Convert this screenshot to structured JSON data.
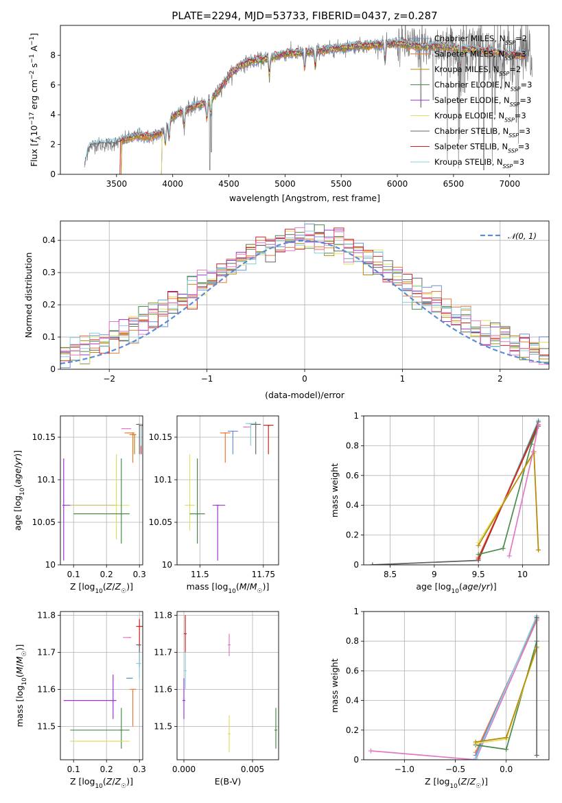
{
  "figure_title": "PLATE=2294, MJD=53733, FIBERID=0437, z=0.287",
  "colors": {
    "Chabrier MILES": "#6a8ed6",
    "Salpeter MILES": "#ee7733",
    "Kroupa MILES": "#b8860b",
    "Chabrier ELODIE": "#4a8a4a",
    "Salpeter ELODIE": "#9933cc",
    "Kroupa ELODIE": "#dde060",
    "Chabrier STELIB": "#666666",
    "Salpeter STELIB": "#cc2222",
    "Kroupa STELIB": "#88ccdd",
    "pink": "#e377c2",
    "normal": "#5b8bd6"
  },
  "chart_data": [
    {
      "id": "spectrum",
      "type": "line",
      "title": "PLATE=2294, MJD=53733, FIBERID=0437, z=0.287",
      "xlabel": "wavelength [Angstrom, rest frame]",
      "ylabel": "Flux [f_λ 10^-17 erg cm^-2 s^-1 A^-1]",
      "xlim": [
        3000,
        7350
      ],
      "ylim": [
        0,
        10
      ],
      "xticks": [
        3500,
        4000,
        4500,
        5000,
        5500,
        6000,
        6500,
        7000
      ],
      "yticks": [
        0,
        2,
        4,
        6,
        8
      ],
      "legend_position": "top-right",
      "legend": [
        "Chabrier MILES, N_SSP=2",
        "Salpeter MILES, N_SSP=3",
        "Kroupa MILES, N_SSP=2",
        "Chabrier ELODIE, N_SSP=3",
        "Salpeter ELODIE, N_SSP=3",
        "Kroupa ELODIE, N_SSP=3",
        "Chabrier STELIB, N_SSP=3",
        "Salpeter STELIB, N_SSP=3",
        "Kroupa STELIB, N_SSP=3"
      ],
      "continuum": {
        "x": [
          3200,
          3250,
          3300,
          3400,
          3500,
          3600,
          3700,
          3800,
          3900,
          3950,
          4000,
          4100,
          4200,
          4300,
          4400,
          4500,
          4600,
          4700,
          4800,
          4900,
          5000,
          5200,
          5400,
          5600,
          5800,
          6000,
          6200,
          6400,
          6600,
          6800,
          7000,
          7200
        ],
        "y": [
          0.0,
          1.8,
          2.0,
          2.0,
          2.1,
          2.4,
          2.6,
          2.5,
          2.8,
          3.3,
          3.9,
          4.3,
          4.6,
          4.8,
          5.5,
          6.6,
          7.3,
          7.6,
          7.7,
          7.9,
          8.1,
          8.2,
          8.4,
          8.6,
          8.7,
          8.8,
          8.6,
          8.6,
          8.4,
          8.3,
          8.1,
          7.9
        ]
      }
    },
    {
      "id": "residuals",
      "type": "line",
      "xlabel": "(data-model)/error",
      "ylabel": "Normed distribution",
      "xlim": [
        -2.5,
        2.5
      ],
      "ylim": [
        0,
        0.46
      ],
      "xticks": [
        -2,
        -1,
        0,
        1,
        2
      ],
      "yticks": [
        0.0,
        0.1,
        0.2,
        0.3,
        0.4
      ],
      "grid": true,
      "legend_position": "top-right",
      "legend": [
        "𝒩(0, 1)"
      ],
      "hist_bin_width": 0.1
    },
    {
      "id": "age_vs_Z",
      "type": "scatter",
      "xlabel": "Z [log10(Z/Z☉)]",
      "ylabel": "age  [log10(age/yr)]",
      "xlim": [
        0.06,
        0.31
      ],
      "ylim": [
        10.0,
        10.175
      ],
      "xticks": [
        0.1,
        0.2,
        0.3
      ],
      "yticks": [
        10.0,
        10.05,
        10.1,
        10.15
      ],
      "grid": true,
      "points": [
        {
          "c": "Salpeter ELODIE",
          "x": 0.07,
          "y": 10.07,
          "xerr": [
            0.07,
            0.23
          ],
          "yerr": [
            10.005,
            10.125
          ]
        },
        {
          "c": "Kroupa ELODIE",
          "x": 0.23,
          "y": 10.07,
          "xerr": [
            0.09,
            0.27
          ],
          "yerr": [
            10.03,
            10.13
          ]
        },
        {
          "c": "Chabrier ELODIE",
          "x": 0.245,
          "y": 10.06,
          "xerr": [
            0.1,
            0.27
          ],
          "yerr": [
            10.025,
            10.125
          ]
        },
        {
          "c": "pink",
          "x": 0.27,
          "y": 10.16,
          "xerr": [
            0.245,
            0.275
          ],
          "yerr": [
            10.16,
            10.16
          ]
        },
        {
          "c": "Salpeter MILES",
          "x": 0.28,
          "y": 10.155,
          "xerr": [
            0.255,
            0.285
          ],
          "yerr": [
            10.12,
            10.155
          ]
        },
        {
          "c": "Kroupa MILES",
          "x": 0.285,
          "y": 10.153,
          "xerr": [
            0.27,
            0.29
          ],
          "yerr": [
            10.13,
            10.153
          ]
        },
        {
          "c": "Chabrier STELIB",
          "x": 0.3,
          "y": 10.165,
          "xerr": [
            0.29,
            0.305
          ],
          "yerr": [
            10.13,
            10.165
          ]
        },
        {
          "c": "Salpeter STELIB",
          "x": 0.305,
          "y": 10.164,
          "xerr": [
            0.3,
            0.31
          ],
          "yerr": [
            10.13,
            10.164
          ]
        },
        {
          "c": "Kroupa STELIB",
          "x": 0.305,
          "y": 10.165,
          "xerr": [
            0.3,
            0.31
          ],
          "yerr": [
            10.14,
            10.165
          ]
        }
      ]
    },
    {
      "id": "age_vs_mass",
      "type": "scatter",
      "xlabel": "mass [log10(M/M☉)]",
      "ylabel": "",
      "xlim": [
        11.41,
        11.81
      ],
      "ylim": [
        10.0,
        10.175
      ],
      "xticks": [
        11.5,
        11.75
      ],
      "yticks": [
        10.0,
        10.05,
        10.1,
        10.15
      ],
      "grid": true,
      "points": [
        {
          "c": "Kroupa ELODIE",
          "x": 11.46,
          "y": 10.07,
          "xerr": [
            11.44,
            11.48
          ],
          "yerr": [
            10.04,
            10.13
          ]
        },
        {
          "c": "Chabrier ELODIE",
          "x": 11.49,
          "y": 10.06,
          "xerr": [
            11.46,
            11.52
          ],
          "yerr": [
            10.025,
            10.125
          ]
        },
        {
          "c": "Salpeter ELODIE",
          "x": 11.57,
          "y": 10.07,
          "xerr": [
            11.55,
            11.6
          ],
          "yerr": [
            10.005,
            10.07
          ]
        },
        {
          "c": "Salpeter MILES",
          "x": 11.6,
          "y": 10.155,
          "xerr": [
            11.58,
            11.62
          ],
          "yerr": [
            10.12,
            10.155
          ]
        },
        {
          "c": "Chabrier MILES",
          "x": 11.63,
          "y": 10.157,
          "xerr": [
            11.61,
            11.65
          ],
          "yerr": [
            10.13,
            10.157
          ]
        },
        {
          "c": "pink",
          "x": 11.68,
          "y": 10.162,
          "xerr": [
            11.67,
            11.7
          ],
          "yerr": [
            10.162,
            10.162
          ]
        },
        {
          "c": "Chabrier STELIB",
          "x": 11.72,
          "y": 10.165,
          "xerr": [
            11.7,
            11.74
          ],
          "yerr": [
            10.13,
            10.168
          ]
        },
        {
          "c": "Salpeter STELIB",
          "x": 11.77,
          "y": 10.164,
          "xerr": [
            11.75,
            11.79
          ],
          "yerr": [
            10.13,
            10.164
          ]
        },
        {
          "c": "Kroupa STELIB",
          "x": 11.7,
          "y": 10.166,
          "xerr": [
            11.68,
            11.72
          ],
          "yerr": [
            10.14,
            10.166
          ]
        }
      ]
    },
    {
      "id": "weight_vs_age",
      "type": "line",
      "xlabel": "age  [log10(age/yr)]",
      "ylabel": "mass weight",
      "xlim": [
        8.2,
        10.3
      ],
      "ylim": [
        0,
        1.0
      ],
      "xticks": [
        8.5,
        9.0,
        9.5,
        10.0
      ],
      "yticks": [
        0.0,
        0.2,
        0.4,
        0.6,
        0.8,
        1.0
      ],
      "grid": true,
      "series": [
        {
          "c": "Kroupa STELIB",
          "x": [
            8.3,
            9.5,
            10.18
          ],
          "y": [
            0.0,
            0.03,
            0.97
          ]
        },
        {
          "c": "Chabrier STELIB",
          "x": [
            8.3,
            9.5,
            10.18
          ],
          "y": [
            0.0,
            0.03,
            0.96
          ]
        },
        {
          "c": "Salpeter MILES",
          "x": [
            9.5,
            10.18
          ],
          "y": [
            0.05,
            0.94
          ]
        },
        {
          "c": "Salpeter STELIB",
          "x": [
            9.5,
            10.18
          ],
          "y": [
            0.04,
            0.94
          ]
        },
        {
          "c": "Chabrier ELODIE",
          "x": [
            9.5,
            9.78,
            10.1,
            10.18
          ],
          "y": [
            0.07,
            0.11,
            0.81,
            0.93
          ]
        },
        {
          "c": "Kroupa ELODIE",
          "x": [
            9.5,
            10.13,
            10.18
          ],
          "y": [
            0.15,
            0.75,
            0.1
          ]
        },
        {
          "c": "Kroupa MILES",
          "x": [
            9.5,
            10.13,
            10.18
          ],
          "y": [
            0.13,
            0.76,
            0.1
          ]
        },
        {
          "c": "pink",
          "x": [
            9.85,
            10.12,
            10.18
          ],
          "y": [
            0.06,
            0.76,
            0.94
          ]
        }
      ]
    },
    {
      "id": "mass_vs_Z",
      "type": "scatter",
      "xlabel": "Z [log10(Z/Z☉)]",
      "ylabel": "mass [log10(M/M☉)]",
      "xlim": [
        0.06,
        0.31
      ],
      "ylim": [
        11.41,
        11.81
      ],
      "xticks": [
        0.1,
        0.2,
        0.3
      ],
      "yticks": [
        11.5,
        11.6,
        11.7,
        11.8
      ],
      "grid": true,
      "points": [
        {
          "c": "Salpeter ELODIE",
          "x": 0.22,
          "y": 11.57,
          "xerr": [
            0.07,
            0.23
          ],
          "yerr": [
            11.52,
            11.64
          ]
        },
        {
          "c": "Chabrier ELODIE",
          "x": 0.245,
          "y": 11.49,
          "xerr": [
            0.09,
            0.27
          ],
          "yerr": [
            11.44,
            11.55
          ]
        },
        {
          "c": "Kroupa ELODIE",
          "x": 0.23,
          "y": 11.46,
          "xerr": [
            0.09,
            0.27
          ],
          "yerr": [
            11.46,
            11.46
          ]
        },
        {
          "c": "pink",
          "x": 0.27,
          "y": 11.74,
          "xerr": [
            0.25,
            0.275
          ],
          "yerr": [
            11.74,
            11.74
          ]
        },
        {
          "c": "Chabrier MILES",
          "x": 0.27,
          "y": 11.63,
          "xerr": [
            0.26,
            0.28
          ],
          "yerr": [
            11.63,
            11.63
          ]
        },
        {
          "c": "Salpeter MILES",
          "x": 0.28,
          "y": 11.6,
          "xerr": [
            0.27,
            0.29
          ],
          "yerr": [
            11.5,
            11.6
          ]
        },
        {
          "c": "Chabrier STELIB",
          "x": 0.3,
          "y": 11.72,
          "xerr": [
            0.29,
            0.305
          ],
          "yerr": [
            11.66,
            11.72
          ]
        },
        {
          "c": "Salpeter STELIB",
          "x": 0.3,
          "y": 11.77,
          "xerr": [
            0.29,
            0.31
          ],
          "yerr": [
            11.72,
            11.79
          ]
        },
        {
          "c": "Kroupa STELIB",
          "x": 0.3,
          "y": 11.67,
          "xerr": [
            0.29,
            0.305
          ],
          "yerr": [
            11.63,
            11.7
          ]
        }
      ]
    },
    {
      "id": "mass_vs_ebv",
      "type": "scatter",
      "xlabel": "E(B-V)",
      "ylabel": "",
      "xlim": [
        -0.0005,
        0.0069
      ],
      "ylim": [
        11.41,
        11.81
      ],
      "xticks": [
        0.0,
        0.005
      ],
      "tick_labels": [
        "0.000",
        "0.005"
      ],
      "yticks": [
        11.5,
        11.6,
        11.7,
        11.8
      ],
      "grid": true,
      "points": [
        {
          "c": "Salpeter STELIB",
          "x": 0.0001,
          "y": 11.75,
          "yerr": [
            11.7,
            11.8
          ]
        },
        {
          "c": "Kroupa STELIB",
          "x": 0.0001,
          "y": 11.65,
          "yerr": [
            11.6,
            11.7
          ]
        },
        {
          "c": "Salpeter ELODIE",
          "x": 0.0,
          "y": 11.57,
          "yerr": [
            11.52,
            11.63
          ]
        },
        {
          "c": "pink",
          "x": 0.0033,
          "y": 11.72,
          "yerr": [
            11.69,
            11.75
          ]
        },
        {
          "c": "Kroupa ELODIE",
          "x": 0.0033,
          "y": 11.48,
          "yerr": [
            11.43,
            11.53
          ]
        },
        {
          "c": "Chabrier ELODIE",
          "x": 0.0067,
          "y": 11.49,
          "yerr": [
            11.44,
            11.55
          ]
        }
      ]
    },
    {
      "id": "weight_vs_Z",
      "type": "line",
      "xlabel": "Z [log10(Z/Z☉)]",
      "ylabel": "mass weight",
      "xlim": [
        -1.4,
        0.42
      ],
      "ylim": [
        0,
        1.0
      ],
      "xticks": [
        -1.0,
        -0.5,
        0.0
      ],
      "tick_labels": [
        "−1.0",
        "−0.5",
        "0.0"
      ],
      "yticks": [
        0.0,
        0.2,
        0.4,
        0.6,
        0.8,
        1.0
      ],
      "grid": true,
      "series": [
        {
          "c": "pink",
          "x": [
            -1.33,
            -0.3,
            0.3
          ],
          "y": [
            0.06,
            0.0,
            0.94
          ]
        },
        {
          "c": "Salpeter MILES",
          "x": [
            -0.3,
            0.3
          ],
          "y": [
            0.05,
            0.95
          ]
        },
        {
          "c": "Chabrier MILES",
          "x": [
            -0.3,
            0.3
          ],
          "y": [
            0.03,
            0.96
          ]
        },
        {
          "c": "Kroupa STELIB",
          "x": [
            -0.3,
            0.3
          ],
          "y": [
            0.01,
            0.97
          ]
        },
        {
          "c": "Chabrier ELODIE",
          "x": [
            -0.3,
            0.0,
            0.3
          ],
          "y": [
            0.1,
            0.07,
            0.8
          ]
        },
        {
          "c": "Kroupa ELODIE",
          "x": [
            -0.3,
            0.0,
            0.3
          ],
          "y": [
            0.11,
            0.14,
            0.75
          ]
        },
        {
          "c": "Kroupa MILES",
          "x": [
            -0.3,
            0.0,
            0.3
          ],
          "y": [
            0.12,
            0.15,
            0.76
          ]
        },
        {
          "c": "Chabrier STELIB",
          "x": [
            0.3,
            0.3
          ],
          "y": [
            0.03,
            0.96
          ]
        }
      ]
    }
  ]
}
